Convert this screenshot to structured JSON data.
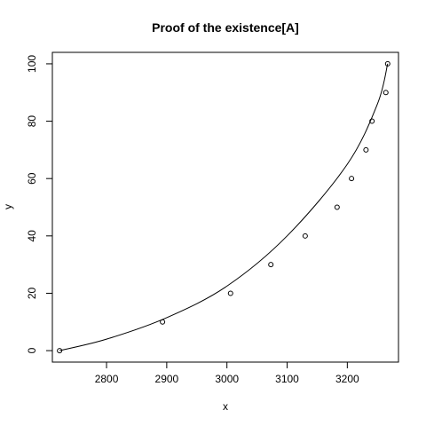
{
  "chart_data": {
    "type": "scatter",
    "title": "Proof of the existence[A]",
    "xlabel": "x",
    "ylabel": "y",
    "xlim": [
      2710,
      3285
    ],
    "ylim": [
      -4,
      104
    ],
    "grid": false,
    "xticks": [
      2800,
      2900,
      3000,
      3100,
      3200
    ],
    "yticks": [
      0,
      20,
      40,
      60,
      80,
      100
    ],
    "points": [
      {
        "x": 2722,
        "y": 0
      },
      {
        "x": 2893,
        "y": 10
      },
      {
        "x": 3006,
        "y": 20
      },
      {
        "x": 3073,
        "y": 30
      },
      {
        "x": 3130,
        "y": 40
      },
      {
        "x": 3183,
        "y": 50
      },
      {
        "x": 3207,
        "y": 60
      },
      {
        "x": 3231,
        "y": 70
      },
      {
        "x": 3241,
        "y": 80
      },
      {
        "x": 3264,
        "y": 90
      },
      {
        "x": 3267,
        "y": 100
      }
    ],
    "curve": [
      {
        "x": 2722,
        "y": 0
      },
      {
        "x": 2800,
        "y": 4
      },
      {
        "x": 2900,
        "y": 11.5
      },
      {
        "x": 3000,
        "y": 22.5
      },
      {
        "x": 3100,
        "y": 40
      },
      {
        "x": 3200,
        "y": 65
      },
      {
        "x": 3250,
        "y": 86
      },
      {
        "x": 3267,
        "y": 100
      }
    ]
  }
}
